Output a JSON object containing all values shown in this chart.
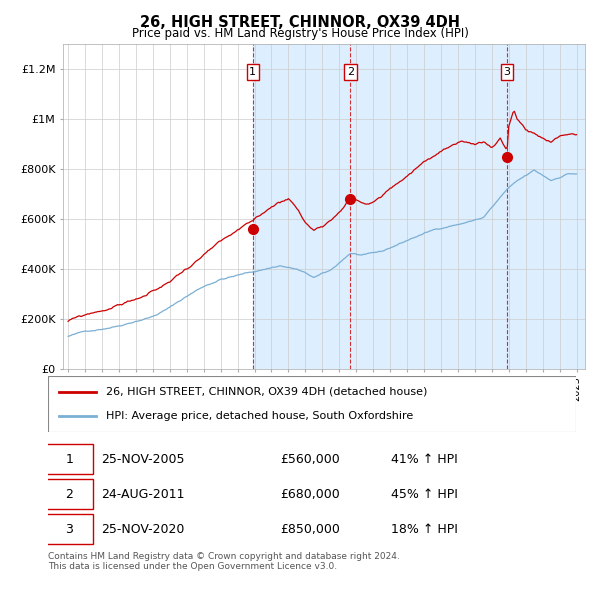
{
  "title": "26, HIGH STREET, CHINNOR, OX39 4DH",
  "subtitle": "Price paid vs. HM Land Registry's House Price Index (HPI)",
  "ylim": [
    0,
    1300000
  ],
  "yticks": [
    0,
    200000,
    400000,
    600000,
    800000,
    1000000,
    1200000
  ],
  "ytick_labels": [
    "£0",
    "£200K",
    "£400K",
    "£600K",
    "£800K",
    "£1M",
    "£1.2M"
  ],
  "sale_color": "#cc0000",
  "hpi_color": "#7bafd4",
  "shaded_color": "#ddeeff",
  "grid_color": "#cccccc",
  "sales": [
    {
      "year": 2005.9,
      "price": 560000,
      "label": "1"
    },
    {
      "year": 2011.65,
      "price": 680000,
      "label": "2"
    },
    {
      "year": 2020.9,
      "price": 850000,
      "label": "3"
    }
  ],
  "sale_table": [
    {
      "num": "1",
      "date": "25-NOV-2005",
      "price": "£560,000",
      "change": "41% ↑ HPI"
    },
    {
      "num": "2",
      "date": "24-AUG-2011",
      "price": "£680,000",
      "change": "45% ↑ HPI"
    },
    {
      "num": "3",
      "date": "25-NOV-2020",
      "price": "£850,000",
      "change": "18% ↑ HPI"
    }
  ],
  "legend_line1": "26, HIGH STREET, CHINNOR, OX39 4DH (detached house)",
  "legend_line2": "HPI: Average price, detached house, South Oxfordshire",
  "footnote": "Contains HM Land Registry data © Crown copyright and database right 2024.\nThis data is licensed under the Open Government Licence v3.0."
}
